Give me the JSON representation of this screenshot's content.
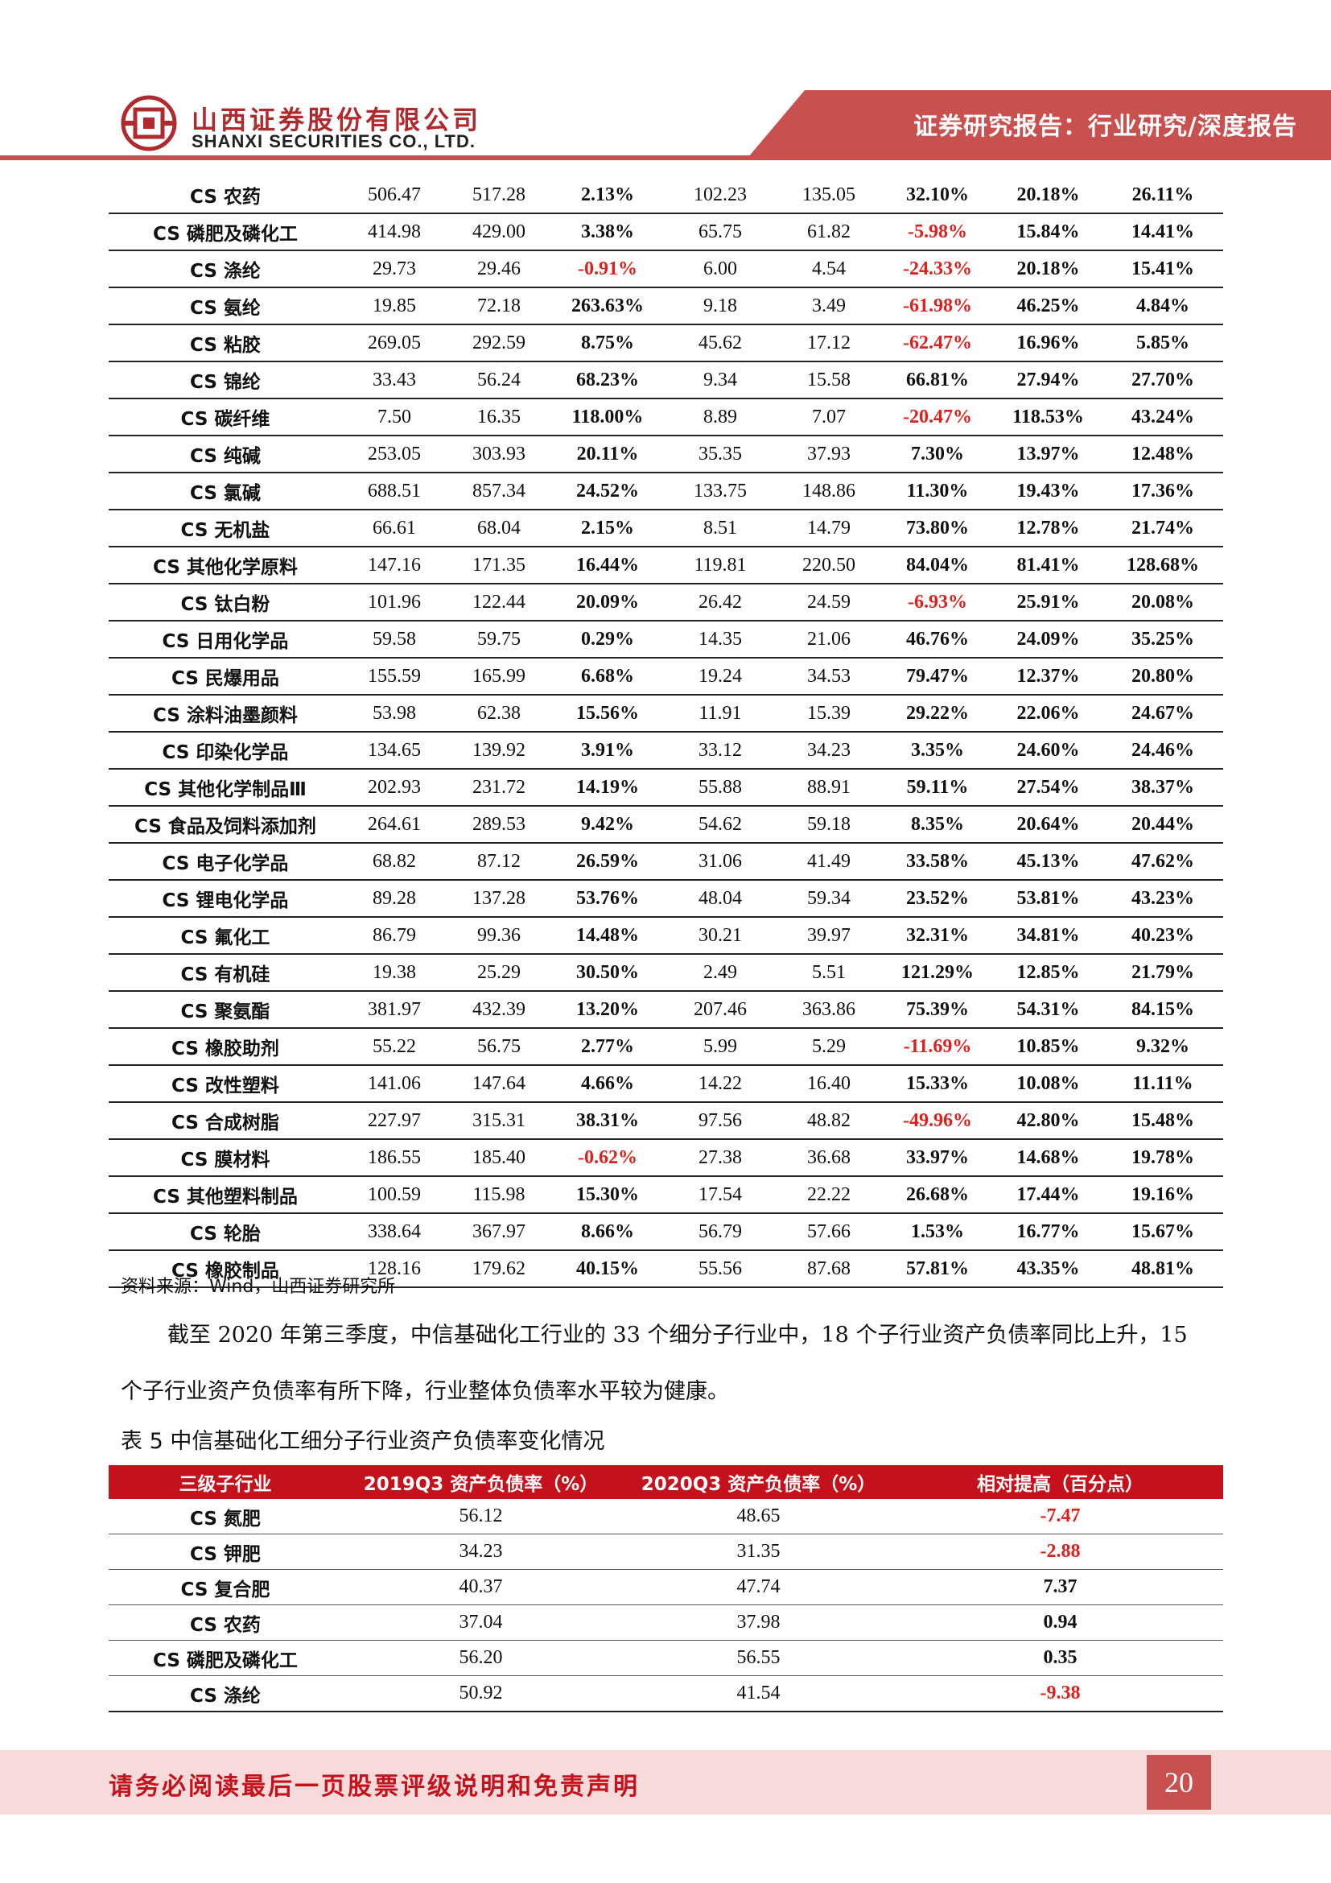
{
  "header": {
    "company_cn": "山西证券股份有限公司",
    "company_en": "SHANXI SECURITIES CO., LTD.",
    "report_type": "证券研究报告：行业研究/深度报告"
  },
  "table4": {
    "rows": [
      [
        "CS 农药",
        "506.47",
        "517.28",
        "2.13%",
        "102.23",
        "135.05",
        "32.10%",
        "20.18%",
        "26.11%"
      ],
      [
        "CS 磷肥及磷化工",
        "414.98",
        "429.00",
        "3.38%",
        "65.75",
        "61.82",
        "-5.98%",
        "15.84%",
        "14.41%"
      ],
      [
        "CS 涤纶",
        "29.73",
        "29.46",
        "-0.91%",
        "6.00",
        "4.54",
        "-24.33%",
        "20.18%",
        "15.41%"
      ],
      [
        "CS 氨纶",
        "19.85",
        "72.18",
        "263.63%",
        "9.18",
        "3.49",
        "-61.98%",
        "46.25%",
        "4.84%"
      ],
      [
        "CS 粘胶",
        "269.05",
        "292.59",
        "8.75%",
        "45.62",
        "17.12",
        "-62.47%",
        "16.96%",
        "5.85%"
      ],
      [
        "CS 锦纶",
        "33.43",
        "56.24",
        "68.23%",
        "9.34",
        "15.58",
        "66.81%",
        "27.94%",
        "27.70%"
      ],
      [
        "CS 碳纤维",
        "7.50",
        "16.35",
        "118.00%",
        "8.89",
        "7.07",
        "-20.47%",
        "118.53%",
        "43.24%"
      ],
      [
        "CS 纯碱",
        "253.05",
        "303.93",
        "20.11%",
        "35.35",
        "37.93",
        "7.30%",
        "13.97%",
        "12.48%"
      ],
      [
        "CS 氯碱",
        "688.51",
        "857.34",
        "24.52%",
        "133.75",
        "148.86",
        "11.30%",
        "19.43%",
        "17.36%"
      ],
      [
        "CS 无机盐",
        "66.61",
        "68.04",
        "2.15%",
        "8.51",
        "14.79",
        "73.80%",
        "12.78%",
        "21.74%"
      ],
      [
        "CS 其他化学原料",
        "147.16",
        "171.35",
        "16.44%",
        "119.81",
        "220.50",
        "84.04%",
        "81.41%",
        "128.68%"
      ],
      [
        "CS 钛白粉",
        "101.96",
        "122.44",
        "20.09%",
        "26.42",
        "24.59",
        "-6.93%",
        "25.91%",
        "20.08%"
      ],
      [
        "CS 日用化学品",
        "59.58",
        "59.75",
        "0.29%",
        "14.35",
        "21.06",
        "46.76%",
        "24.09%",
        "35.25%"
      ],
      [
        "CS 民爆用品",
        "155.59",
        "165.99",
        "6.68%",
        "19.24",
        "34.53",
        "79.47%",
        "12.37%",
        "20.80%"
      ],
      [
        "CS 涂料油墨颜料",
        "53.98",
        "62.38",
        "15.56%",
        "11.91",
        "15.39",
        "29.22%",
        "22.06%",
        "24.67%"
      ],
      [
        "CS 印染化学品",
        "134.65",
        "139.92",
        "3.91%",
        "33.12",
        "34.23",
        "3.35%",
        "24.60%",
        "24.46%"
      ],
      [
        "CS 其他化学制品Ⅲ",
        "202.93",
        "231.72",
        "14.19%",
        "55.88",
        "88.91",
        "59.11%",
        "27.54%",
        "38.37%"
      ],
      [
        "CS 食品及饲料添加剂",
        "264.61",
        "289.53",
        "9.42%",
        "54.62",
        "59.18",
        "8.35%",
        "20.64%",
        "20.44%"
      ],
      [
        "CS 电子化学品",
        "68.82",
        "87.12",
        "26.59%",
        "31.06",
        "41.49",
        "33.58%",
        "45.13%",
        "47.62%"
      ],
      [
        "CS 锂电化学品",
        "89.28",
        "137.28",
        "53.76%",
        "48.04",
        "59.34",
        "23.52%",
        "53.81%",
        "43.23%"
      ],
      [
        "CS 氟化工",
        "86.79",
        "99.36",
        "14.48%",
        "30.21",
        "39.97",
        "32.31%",
        "34.81%",
        "40.23%"
      ],
      [
        "CS 有机硅",
        "19.38",
        "25.29",
        "30.50%",
        "2.49",
        "5.51",
        "121.29%",
        "12.85%",
        "21.79%"
      ],
      [
        "CS 聚氨酯",
        "381.97",
        "432.39",
        "13.20%",
        "207.46",
        "363.86",
        "75.39%",
        "54.31%",
        "84.15%"
      ],
      [
        "CS 橡胶助剂",
        "55.22",
        "56.75",
        "2.77%",
        "5.99",
        "5.29",
        "-11.69%",
        "10.85%",
        "9.32%"
      ],
      [
        "CS 改性塑料",
        "141.06",
        "147.64",
        "4.66%",
        "14.22",
        "16.40",
        "15.33%",
        "10.08%",
        "11.11%"
      ],
      [
        "CS 合成树脂",
        "227.97",
        "315.31",
        "38.31%",
        "97.56",
        "48.82",
        "-49.96%",
        "42.80%",
        "15.48%"
      ],
      [
        "CS 膜材料",
        "186.55",
        "185.40",
        "-0.62%",
        "27.38",
        "36.68",
        "33.97%",
        "14.68%",
        "19.78%"
      ],
      [
        "CS 其他塑料制品",
        "100.59",
        "115.98",
        "15.30%",
        "17.54",
        "22.22",
        "26.68%",
        "17.44%",
        "19.16%"
      ],
      [
        "CS 轮胎",
        "338.64",
        "367.97",
        "8.66%",
        "56.79",
        "57.66",
        "1.53%",
        "16.77%",
        "15.67%"
      ],
      [
        "CS 橡胶制品",
        "128.16",
        "179.62",
        "40.15%",
        "55.56",
        "87.68",
        "57.81%",
        "43.35%",
        "48.81%"
      ]
    ]
  },
  "source_note": "资料来源：Wind，山西证券研究所",
  "paragraph": "截至 2020 年第三季度，中信基础化工行业的 33 个细分子行业中，18 个子行业资产负债率同比上升，15 个子行业资产负债率有所下降，行业整体负债率水平较为健康。",
  "table5": {
    "caption": "表 5  中信基础化工细分子行业资产负债率变化情况",
    "headers": [
      "三级子行业",
      "2019Q3 资产负债率（%）",
      "2020Q3 资产负债率（%）",
      "相对提高（百分点）"
    ],
    "rows": [
      [
        "CS 氮肥",
        "56.12",
        "48.65",
        "-7.47"
      ],
      [
        "CS 钾肥",
        "34.23",
        "31.35",
        "-2.88"
      ],
      [
        "CS 复合肥",
        "40.37",
        "47.74",
        "7.37"
      ],
      [
        "CS 农药",
        "37.04",
        "37.98",
        "0.94"
      ],
      [
        "CS 磷肥及磷化工",
        "56.20",
        "56.55",
        "0.35"
      ],
      [
        "CS 涤纶",
        "50.92",
        "41.54",
        "-9.38"
      ]
    ]
  },
  "footer": {
    "disclaimer": "请务必阅读最后一页股票评级说明和免责声明",
    "page_number": "20"
  },
  "colors": {
    "brand_red": "#c5111c",
    "header_band": "#c8504f",
    "negative": "#e0201d",
    "footer_bg": "#f7dada"
  }
}
